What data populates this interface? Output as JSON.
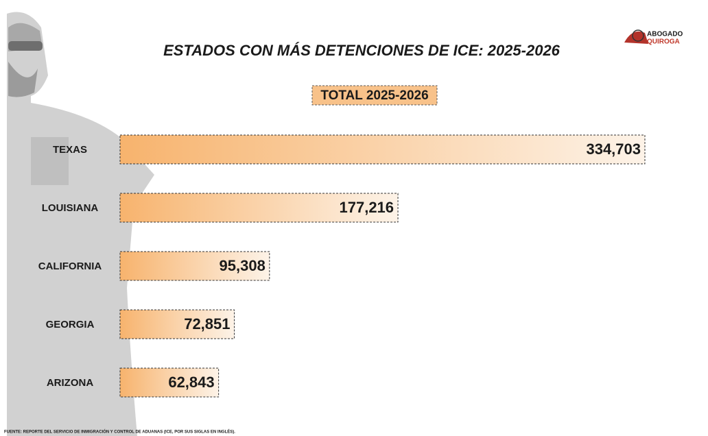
{
  "chart_data": {
    "type": "bar",
    "orientation": "horizontal",
    "title": "ESTADOS CON MÁS DETENCIONES DE ICE: 2025-2026",
    "subtitle": "TOTAL 2025-2026",
    "categories": [
      "TEXAS",
      "LOUISIANA",
      "CALIFORNIA",
      "GEORGIA",
      "ARIZONA"
    ],
    "values": [
      334703,
      177216,
      95308,
      72851,
      62843
    ],
    "value_labels": [
      "334,703",
      "177,216",
      "95,308",
      "72,851",
      "62,843"
    ],
    "color": "#f7b36d",
    "brand": [
      "ABOGADO",
      "QUIROGA"
    ],
    "source": "FUENTE: REPORTE DEL SERVICIO DE INMIGRACIÓN Y CONTROL DE ADUANAS (ICE, POR SUS SIGLAS EN INGLÉS)."
  }
}
